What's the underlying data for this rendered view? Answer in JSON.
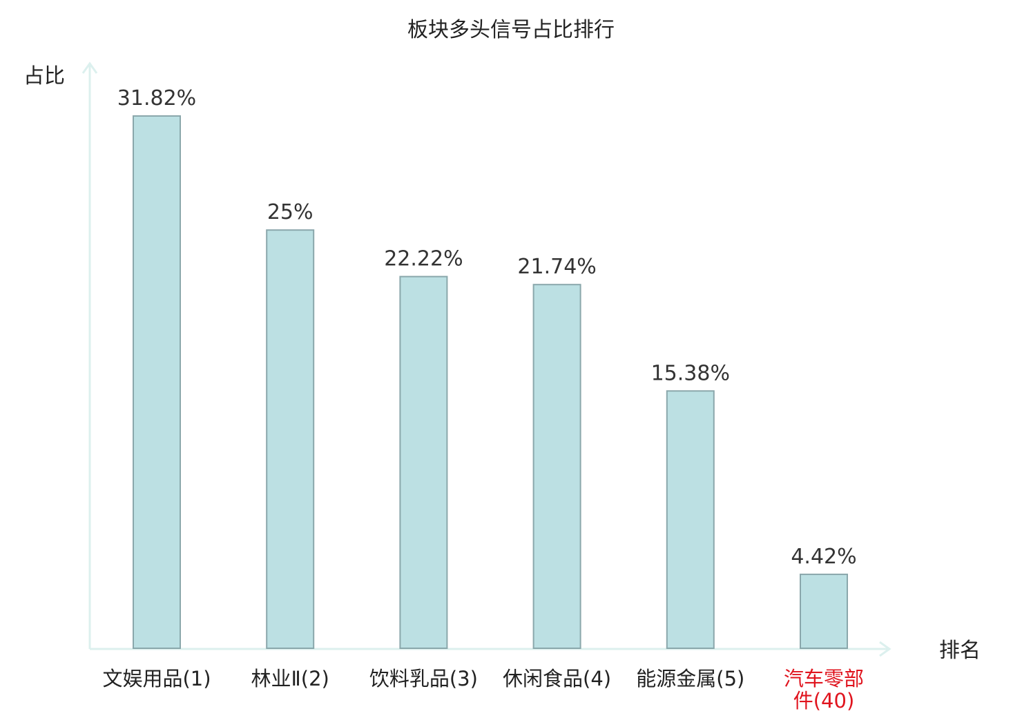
{
  "chart_data": {
    "type": "bar",
    "title": "板块多头信号占比排行",
    "ylabel": "占比",
    "xlabel": "排名",
    "categories": [
      [
        "文娱用品(1)"
      ],
      [
        "林业Ⅱ(2)"
      ],
      [
        "饮料乳品(3)"
      ],
      [
        "休闲食品(4)"
      ],
      [
        "能源金属(5)"
      ],
      [
        "汽车零部",
        "件(40)"
      ]
    ],
    "values": [
      31.82,
      25,
      22.22,
      21.74,
      15.38,
      4.42
    ],
    "value_labels": [
      "31.82%",
      "25%",
      "22.22%",
      "21.74%",
      "15.38%",
      "4.42%"
    ],
    "highlight_index": 5,
    "ylim": [
      0,
      31.82
    ],
    "grid": false,
    "colors": {
      "bar_fill": "#bce0e3",
      "bar_stroke": "#8aa7ab",
      "axis": "#dcf0ee",
      "text": "#222222",
      "value_text": "#333333",
      "highlight_text": "#e0141e"
    }
  }
}
